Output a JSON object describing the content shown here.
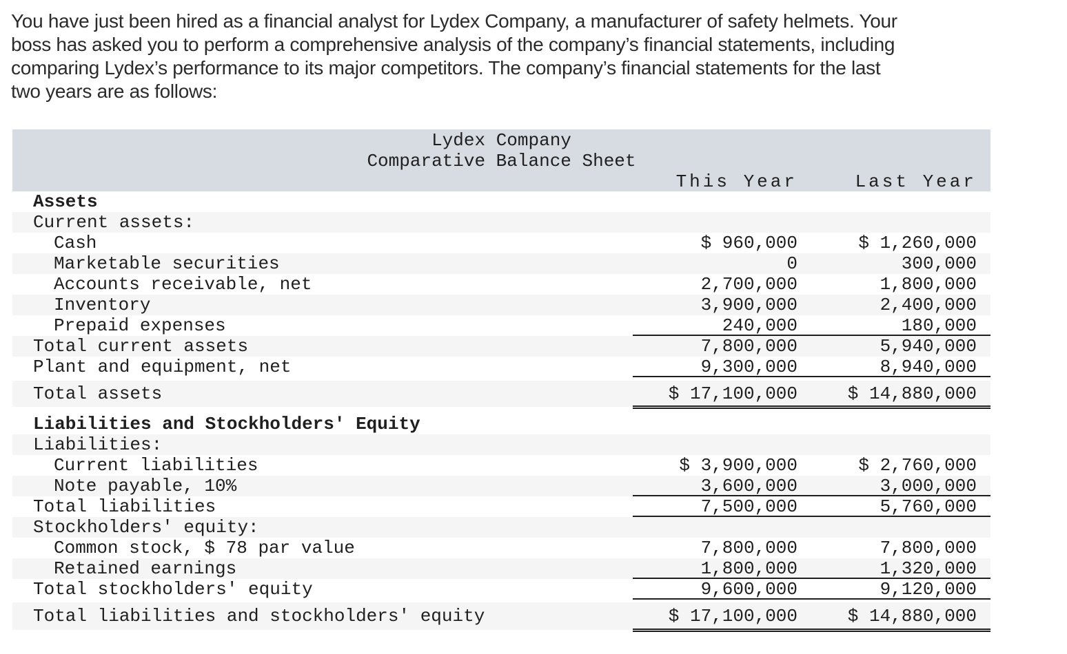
{
  "intro": {
    "lines": [
      "You have just been hired as a financial analyst for Lydex Company, a manufacturer of safety helmets. Your",
      "boss has asked you to perform a comprehensive analysis of the company’s financial statements, including",
      "comparing Lydex’s performance to its major competitors. The company’s financial statements for the last",
      "two years are as follows:"
    ]
  },
  "table": {
    "title": "Lydex Company",
    "subtitle": "Comparative Balance Sheet",
    "columns": {
      "this_year": "This Year",
      "last_year": "Last Year"
    },
    "colors": {
      "header_bg": "#d7dbe2",
      "stripe_bg": "#f5f5f6",
      "rule": "#1e1e1e"
    },
    "rows": [
      {
        "label": "Assets",
        "this_year": "",
        "last_year": ""
      },
      {
        "label": "Current assets:",
        "this_year": "",
        "last_year": ""
      },
      {
        "label": "Cash",
        "this_year": "$ 960,000",
        "last_year": "$ 1,260,000"
      },
      {
        "label": "Marketable securities",
        "this_year": "0",
        "last_year": "300,000"
      },
      {
        "label": "Accounts receivable, net",
        "this_year": "2,700,000",
        "last_year": "1,800,000"
      },
      {
        "label": "Inventory",
        "this_year": "3,900,000",
        "last_year": "2,400,000"
      },
      {
        "label": "Prepaid expenses",
        "this_year": "240,000",
        "last_year": "180,000"
      },
      {
        "label": "Total current assets",
        "this_year": "7,800,000",
        "last_year": "5,940,000"
      },
      {
        "label": "Plant and equipment, net",
        "this_year": "9,300,000",
        "last_year": "8,940,000"
      },
      {
        "label": "Total assets",
        "this_year": "$ 17,100,000",
        "last_year": "$ 14,880,000"
      },
      {
        "label": "Liabilities and Stockholders' Equity",
        "this_year": "",
        "last_year": ""
      },
      {
        "label": "Liabilities:",
        "this_year": "",
        "last_year": ""
      },
      {
        "label": "Current liabilities",
        "this_year": "$ 3,900,000",
        "last_year": "$ 2,760,000"
      },
      {
        "label": "Note payable, 10%",
        "this_year": "3,600,000",
        "last_year": "3,000,000"
      },
      {
        "label": "Total liabilities",
        "this_year": "7,500,000",
        "last_year": "5,760,000"
      },
      {
        "label": "Stockholders' equity:",
        "this_year": "",
        "last_year": ""
      },
      {
        "label": "Common stock, $ 78 par value",
        "this_year": "7,800,000",
        "last_year": "7,800,000"
      },
      {
        "label": "Retained earnings",
        "this_year": "1,800,000",
        "last_year": "1,320,000"
      },
      {
        "label": "Total stockholders' equity",
        "this_year": "9,600,000",
        "last_year": "9,120,000"
      },
      {
        "label": "Total liabilities and stockholders' equity",
        "this_year": "$ 17,100,000",
        "last_year": "$ 14,880,000"
      }
    ]
  }
}
